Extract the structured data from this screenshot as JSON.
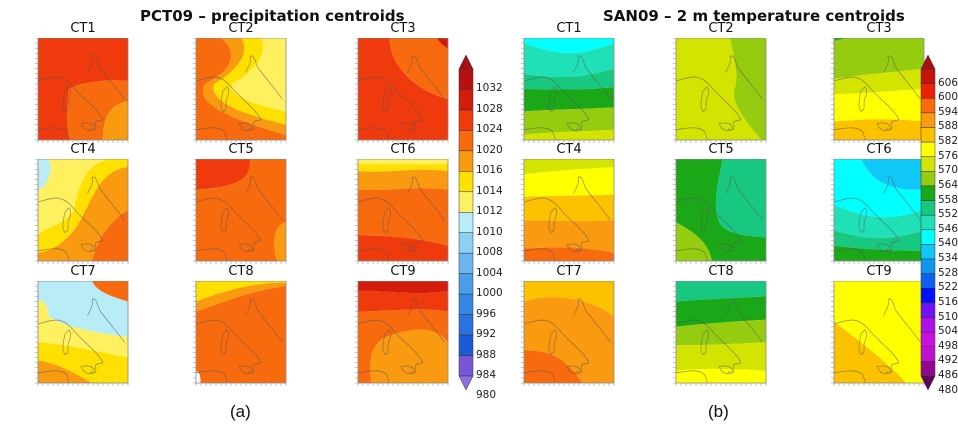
{
  "chart_data": [
    {
      "type": "heatmap",
      "panel_label": "(a)",
      "title": "PCT09 – precipitation centroids",
      "colorbar": {
        "labels": [
          "1032",
          "1028",
          "1024",
          "1020",
          "1016",
          "1014",
          "1012",
          "1010",
          "1008",
          "1004",
          "1000",
          "996",
          "992",
          "988",
          "984",
          "980"
        ],
        "levels_top_to_bottom": [
          {
            "range": ">1032",
            "color": "#a50f15"
          },
          {
            "range": "1028-1032",
            "color": "#b81010"
          },
          {
            "range": "1024-1028",
            "color": "#d31c0c"
          },
          {
            "range": "1020-1024",
            "color": "#ee3a0c"
          },
          {
            "range": "1016-1020",
            "color": "#f86a0e"
          },
          {
            "range": "1014-1016",
            "color": "#fa9a10"
          },
          {
            "range": "1012-1014",
            "color": "#ffe000"
          },
          {
            "range": "1010-1012",
            "color": "#fff060"
          },
          {
            "range": "1008-1010",
            "color": "#b8ecf6"
          },
          {
            "range": "1004-1008",
            "color": "#8cd0f2"
          },
          {
            "range": "1000-1004",
            "color": "#6ab6ee"
          },
          {
            "range": "996-1000",
            "color": "#4a9ee8"
          },
          {
            "range": "992-996",
            "color": "#3688e6"
          },
          {
            "range": "988-992",
            "color": "#2a72e0"
          },
          {
            "range": "984-988",
            "color": "#1a5cd8"
          },
          {
            "range": "980-984",
            "color": "#7856d8"
          },
          {
            "range": "<980",
            "color": "#8e6ee0"
          }
        ]
      },
      "maps": [
        {
          "label": "CT1",
          "bands": [
            {
              "color": "#ee3a0c"
            },
            {
              "color": "#f86a0e"
            },
            {
              "color": "#fa9a10"
            }
          ],
          "description": "mostly 1020-1024, lower values SE"
        },
        {
          "label": "CT2",
          "bands": [
            {
              "color": "#f86a0e"
            },
            {
              "color": "#fa9a10"
            },
            {
              "color": "#ffe000"
            },
            {
              "color": "#fff060"
            }
          ],
          "description": "ridge of 1010-1016 over central Italy"
        },
        {
          "label": "CT3",
          "bands": [
            {
              "color": "#ee3a0c"
            },
            {
              "color": "#f86a0e"
            },
            {
              "color": "#d31c0c"
            }
          ],
          "description": "1016-1020 south, 1020-1024 NE"
        },
        {
          "label": "CT4",
          "bands": [
            {
              "color": "#b8ecf6"
            },
            {
              "color": "#fff060"
            },
            {
              "color": "#ffe000"
            },
            {
              "color": "#fa9a10"
            },
            {
              "color": "#f86a0e"
            }
          ],
          "description": "low 1008-1010 NW, increasing to SE"
        },
        {
          "label": "CT5",
          "bands": [
            {
              "color": "#ee3a0c"
            },
            {
              "color": "#f86a0e"
            },
            {
              "color": "#fa9a10"
            }
          ],
          "description": "mostly 1016-1020"
        },
        {
          "label": "CT6",
          "bands": [
            {
              "color": "#fff060"
            },
            {
              "color": "#ffe000"
            },
            {
              "color": "#fa9a10"
            },
            {
              "color": "#f86a0e"
            },
            {
              "color": "#ee3a0c"
            }
          ],
          "description": "increasing north to south"
        },
        {
          "label": "CT7",
          "bands": [
            {
              "color": "#b8ecf6"
            },
            {
              "color": "#fff060"
            },
            {
              "color": "#ffe000"
            },
            {
              "color": "#fa9a10"
            },
            {
              "color": "#f86a0e"
            }
          ],
          "description": "low 1008-1010 center-N, higher to SW"
        },
        {
          "label": "CT8",
          "bands": [
            {
              "color": "#ffe000"
            },
            {
              "color": "#fa9a10"
            },
            {
              "color": "#f86a0e"
            }
          ],
          "description": "mostly 1016-1020"
        },
        {
          "label": "CT9",
          "bands": [
            {
              "color": "#d31c0c"
            },
            {
              "color": "#ee3a0c"
            },
            {
              "color": "#f86a0e"
            },
            {
              "color": "#fa9a10"
            }
          ],
          "description": "high north, 1014-1016 over Italy"
        }
      ]
    },
    {
      "type": "heatmap",
      "panel_label": "(b)",
      "title": "SAN09 – 2 m  temperature centroids",
      "colorbar": {
        "labels": [
          "606",
          "600",
          "594",
          "588",
          "582",
          "576",
          "570",
          "564",
          "558",
          "552",
          "546",
          "540",
          "534",
          "528",
          "522",
          "516",
          "510",
          "504",
          "498",
          "492",
          "486",
          "480"
        ],
        "levels_top_to_bottom": [
          {
            "range": ">606",
            "color": "#a50f15"
          },
          {
            "range": "600-606",
            "color": "#c8120e"
          },
          {
            "range": "594-600",
            "color": "#e8200c"
          },
          {
            "range": "588-594",
            "color": "#f86a0e"
          },
          {
            "range": "582-588",
            "color": "#fa9a10"
          },
          {
            "range": "576-582",
            "color": "#fcc200"
          },
          {
            "range": "570-576",
            "color": "#ffff00"
          },
          {
            "range": "564-570",
            "color": "#d2e400"
          },
          {
            "range": "558-564",
            "color": "#96cc10"
          },
          {
            "range": "552-558",
            "color": "#1aa818"
          },
          {
            "range": "546-552",
            "color": "#18c880"
          },
          {
            "range": "540-546",
            "color": "#20e0b8"
          },
          {
            "range": "534-540",
            "color": "#00ffff"
          },
          {
            "range": "528-534",
            "color": "#10c8f8"
          },
          {
            "range": "522-528",
            "color": "#1098f0"
          },
          {
            "range": "516-522",
            "color": "#1060f0"
          },
          {
            "range": "510-516",
            "color": "#0010ff"
          },
          {
            "range": "504-510",
            "color": "#7010f8"
          },
          {
            "range": "498-504",
            "color": "#b010e8"
          },
          {
            "range": "492-498",
            "color": "#c810e0"
          },
          {
            "range": "486-492",
            "color": "#c010d0"
          },
          {
            "range": "480-486",
            "color": "#900890"
          },
          {
            "range": "<480",
            "color": "#600060"
          }
        ]
      },
      "maps": [
        {
          "label": "CT1",
          "bands": [
            {
              "color": "#00ffff"
            },
            {
              "color": "#20e0b8"
            },
            {
              "color": "#18c880"
            },
            {
              "color": "#1aa818"
            },
            {
              "color": "#96cc10"
            },
            {
              "color": "#d2e400"
            }
          ],
          "description": "cold north, warmer south"
        },
        {
          "label": "CT2",
          "bands": [
            {
              "color": "#d2e400"
            },
            {
              "color": "#96cc10"
            }
          ],
          "description": "564-570 west, 558-564 east"
        },
        {
          "label": "CT3",
          "bands": [
            {
              "color": "#1aa818"
            },
            {
              "color": "#96cc10"
            },
            {
              "color": "#d2e400"
            },
            {
              "color": "#ffff00"
            },
            {
              "color": "#fcc200"
            }
          ],
          "description": "increasing north to south"
        },
        {
          "label": "CT4",
          "bands": [
            {
              "color": "#d2e400"
            },
            {
              "color": "#ffff00"
            },
            {
              "color": "#fcc200"
            },
            {
              "color": "#fa9a10"
            },
            {
              "color": "#f86a0e"
            }
          ],
          "description": "increasing north to south"
        },
        {
          "label": "CT5",
          "bands": [
            {
              "color": "#1aa818"
            },
            {
              "color": "#18c880"
            },
            {
              "color": "#96cc10"
            }
          ],
          "description": "552-558 west, 546-552 east"
        },
        {
          "label": "CT6",
          "bands": [
            {
              "color": "#10c8f8"
            },
            {
              "color": "#00ffff"
            },
            {
              "color": "#20e0b8"
            },
            {
              "color": "#18c880"
            },
            {
              "color": "#1aa818"
            }
          ],
          "description": "cold dome north"
        },
        {
          "label": "CT7",
          "bands": [
            {
              "color": "#fcc200"
            },
            {
              "color": "#fa9a10"
            },
            {
              "color": "#f86a0e"
            }
          ],
          "description": "warm SW"
        },
        {
          "label": "CT8",
          "bands": [
            {
              "color": "#18c880"
            },
            {
              "color": "#1aa818"
            },
            {
              "color": "#96cc10"
            },
            {
              "color": "#d2e400"
            },
            {
              "color": "#ffff00"
            }
          ],
          "description": "increasing north to south"
        },
        {
          "label": "CT9",
          "bands": [
            {
              "color": "#ffff00"
            },
            {
              "color": "#fcc200"
            }
          ],
          "description": "570-576 mostly, 576-582 SW"
        }
      ]
    }
  ]
}
